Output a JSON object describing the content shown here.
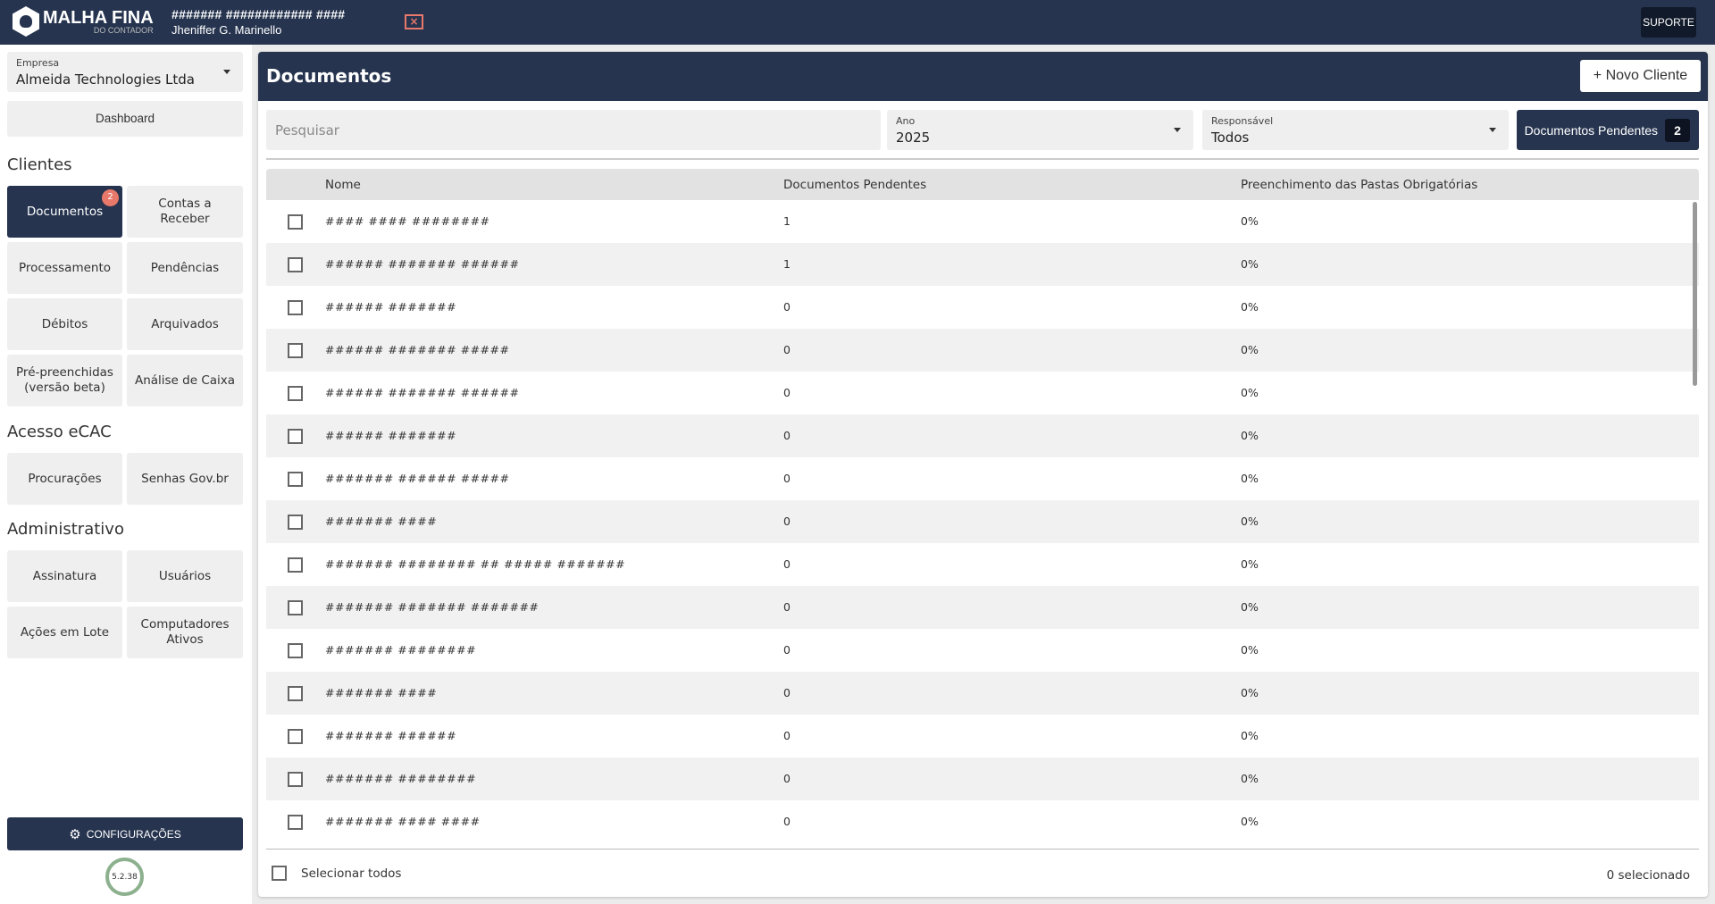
{
  "header": {
    "logo": "MALHA FINA",
    "logo_sub": "DO CONTADOR",
    "user_code": "####### ############ ####",
    "user_name": "Jheniffer G. Marinello",
    "close_icon": "×",
    "support": "SUPORTE"
  },
  "sidebar": {
    "empresa": {
      "label": "Empresa",
      "value": "Almeida Technologies Ltda"
    },
    "dashboard": "Dashboard",
    "sections": [
      {
        "title": "Clientes",
        "items": [
          {
            "label": "Documentos",
            "badge": "2",
            "active": true
          },
          {
            "label": "Contas a Receber"
          },
          {
            "label": "Processamento"
          },
          {
            "label": "Pendências"
          },
          {
            "label": "Débitos"
          },
          {
            "label": "Arquivados"
          },
          {
            "label": "Pré-preenchidas (versão beta)"
          },
          {
            "label": "Análise de Caixa"
          }
        ]
      },
      {
        "title": "Acesso eCAC",
        "items": [
          {
            "label": "Procurações"
          },
          {
            "label": "Senhas Gov.br"
          }
        ]
      },
      {
        "title": "Administrativo",
        "items": [
          {
            "label": "Assinatura"
          },
          {
            "label": "Usuários"
          },
          {
            "label": "Ações em Lote"
          },
          {
            "label": "Computadores Ativos"
          }
        ]
      }
    ],
    "settings": "CONFIGURAÇÕES",
    "version": "5.2.38"
  },
  "main": {
    "title": "Documentos",
    "new_client": "+ Novo Cliente",
    "search_placeholder": "Pesquisar",
    "ano": {
      "label": "Ano",
      "value": "2025"
    },
    "responsavel": {
      "label": "Responsável",
      "value": "Todos"
    },
    "pending_button": {
      "label": "Documentos Pendentes",
      "count": "2"
    },
    "columns": [
      "Nome",
      "Documentos Pendentes",
      "Preenchimento das Pastas Obrigatórias"
    ],
    "rows": [
      [
        "#### #### ########",
        "1",
        "0%"
      ],
      [
        "###### ####### ######",
        "1",
        "0%"
      ],
      [
        "###### #######",
        "0",
        "0%"
      ],
      [
        "###### ####### #####",
        "0",
        "0%"
      ],
      [
        "###### ####### ######",
        "0",
        "0%"
      ],
      [
        "###### #######",
        "0",
        "0%"
      ],
      [
        "####### ###### #####",
        "0",
        "0%"
      ],
      [
        "####### ####",
        "0",
        "0%"
      ],
      [
        "####### ######## ## ##### #######",
        "0",
        "0%"
      ],
      [
        "####### ####### #######",
        "0",
        "0%"
      ],
      [
        "####### ########",
        "0",
        "0%"
      ],
      [
        "####### ####",
        "0",
        "0%"
      ],
      [
        "####### ######",
        "0",
        "0%"
      ],
      [
        "####### ########",
        "0",
        "0%"
      ],
      [
        "####### #### ####",
        "0",
        "0%"
      ]
    ],
    "select_all": "Selecionar todos",
    "selected_count": "0 selecionado"
  },
  "colors": {
    "primary": "#26344f",
    "badge": "#e8796a",
    "version_ring": "#8db08f"
  }
}
